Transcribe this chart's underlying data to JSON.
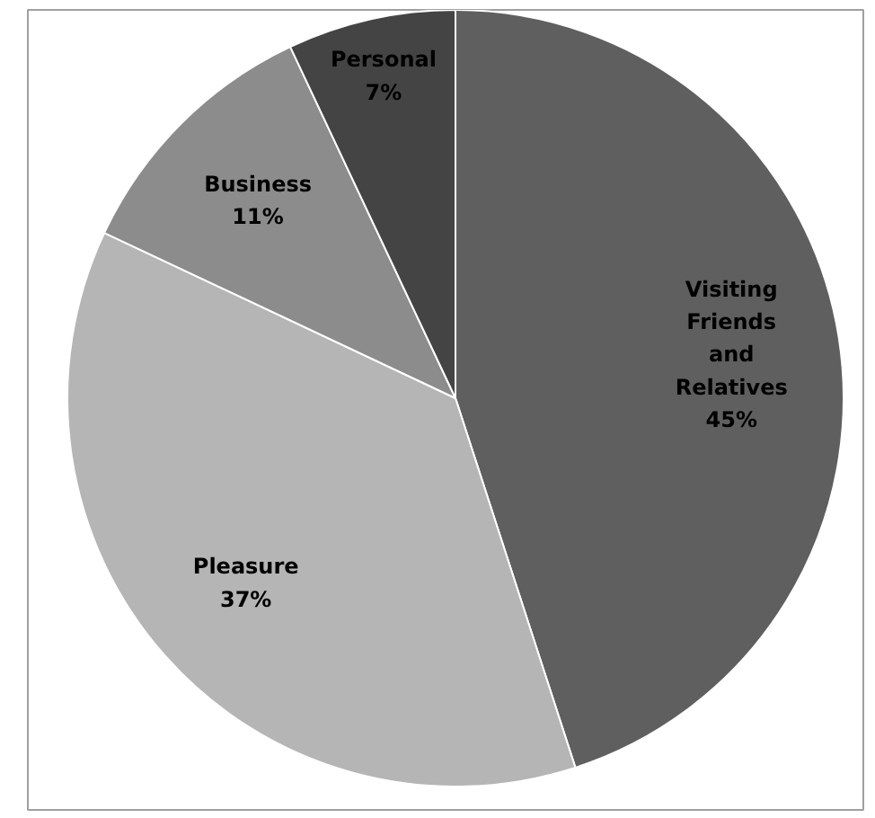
{
  "chart_data": {
    "type": "pie",
    "categories": [
      "Visiting Friends and Relatives",
      "Pleasure",
      "Business",
      "Personal"
    ],
    "values": [
      45,
      37,
      11,
      7
    ],
    "value_labels": [
      "45%",
      "37%",
      "11%",
      "7%"
    ],
    "colors": [
      "#5f5f5f",
      "#b5b5b5",
      "#8c8c8c",
      "#444444"
    ],
    "legend": false
  }
}
